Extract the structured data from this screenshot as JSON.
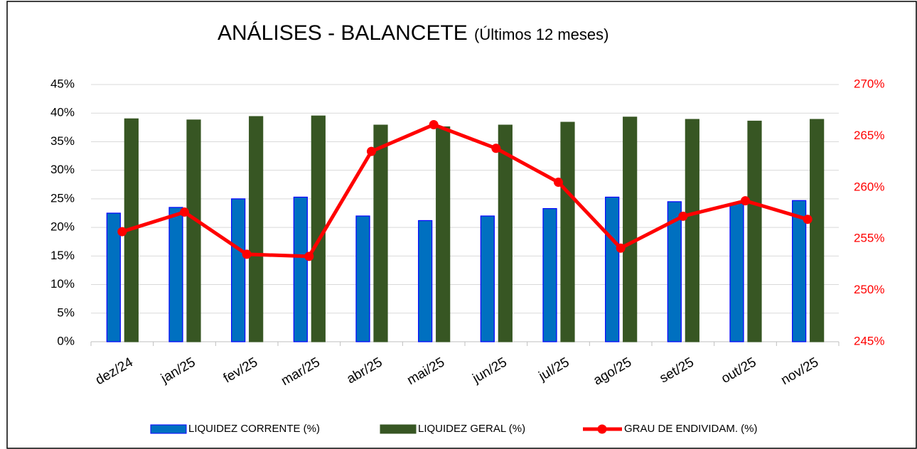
{
  "chart_data": {
    "type": "bar_line",
    "title": "ANÁLISES - BALANCETE",
    "subtitle": "(Últimos 12 meses)",
    "categories": [
      "dez/24",
      "jan/25",
      "fev/25",
      "mar/25",
      "abr/25",
      "mai/25",
      "jun/25",
      "jul/25",
      "ago/25",
      "set/25",
      "out/25",
      "nov/25"
    ],
    "series": [
      {
        "name": "LIQUIDEZ CORRENTE  (%)",
        "type": "bar",
        "color": "#0070c0",
        "values": [
          22.5,
          23.5,
          25,
          25.3,
          22,
          21.2,
          22,
          23.3,
          25.3,
          24.5,
          24.2,
          24.7
        ]
      },
      {
        "name": "LIQUIDEZ GERAL  (%)",
        "type": "bar",
        "color": "#375623",
        "values": [
          39,
          38.8,
          39.4,
          39.5,
          37.9,
          37.6,
          37.9,
          38.4,
          39.3,
          38.9,
          38.6,
          38.9
        ]
      },
      {
        "name": "GRAU DE ENDIVIDAM.  (%)",
        "type": "line",
        "axis": "y2",
        "color": "#ff0000",
        "values": [
          255.7,
          257.6,
          253.5,
          253.3,
          263.5,
          266.1,
          263.8,
          260.5,
          254.1,
          257.2,
          258.7,
          256.9
        ]
      }
    ],
    "ylim": [
      0,
      45
    ],
    "yticks": [
      {
        "value": 0,
        "label": "0%"
      },
      {
        "value": 5,
        "label": "5%"
      },
      {
        "value": 10,
        "label": "10%"
      },
      {
        "value": 15,
        "label": "15%"
      },
      {
        "value": 20,
        "label": "20%"
      },
      {
        "value": 25,
        "label": "25%"
      },
      {
        "value": 30,
        "label": "30%"
      },
      {
        "value": 35,
        "label": "35%"
      },
      {
        "value": 40,
        "label": "40%"
      },
      {
        "value": 45,
        "label": "45%"
      }
    ],
    "y2lim": [
      245,
      270
    ],
    "y2ticks": [
      {
        "value": 245,
        "label": "245%"
      },
      {
        "value": 250,
        "label": "250%"
      },
      {
        "value": 255,
        "label": "255%"
      },
      {
        "value": 260,
        "label": "260%"
      },
      {
        "value": 265,
        "label": "265%"
      },
      {
        "value": 270,
        "label": "270%"
      }
    ],
    "grid": true,
    "legend": "bottom"
  }
}
